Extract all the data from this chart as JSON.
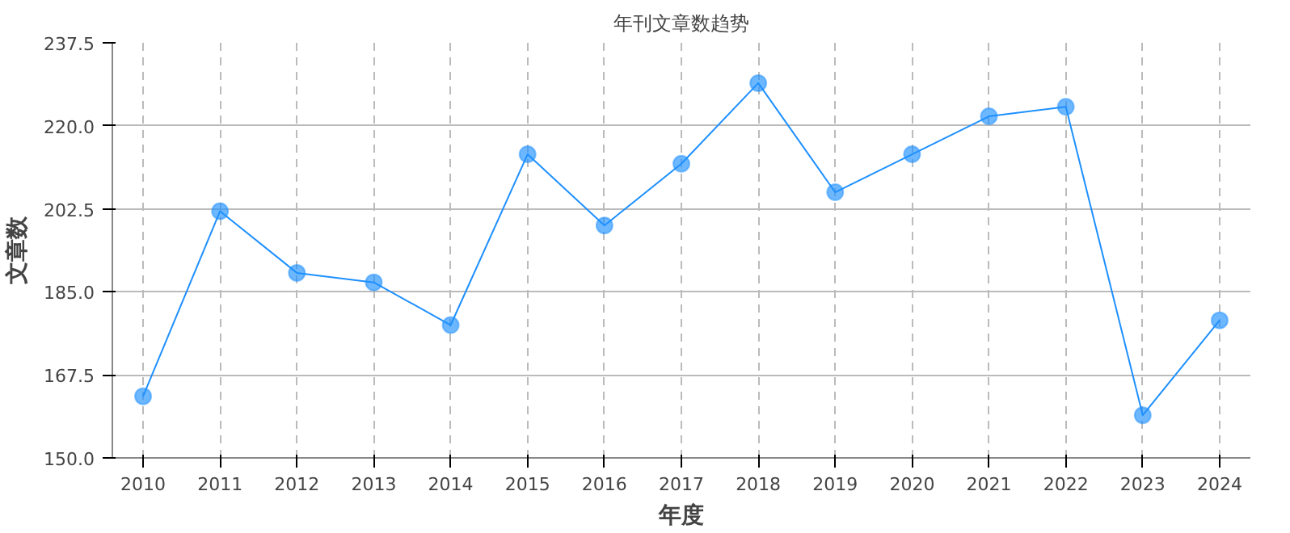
{
  "chart_data": {
    "type": "line",
    "title": "年刊文章数趋势",
    "xlabel": "年度",
    "ylabel": "文章数",
    "categories": [
      "2010",
      "2011",
      "2012",
      "2013",
      "2014",
      "2015",
      "2016",
      "2017",
      "2018",
      "2019",
      "2020",
      "2021",
      "2022",
      "2023",
      "2024"
    ],
    "series": [
      {
        "color": "#1e90ff",
        "values": [
          163,
          202,
          189,
          187,
          178,
          214,
          199,
          212,
          229,
          206,
          214,
          222,
          224,
          159,
          179
        ]
      }
    ],
    "ylim": [
      150,
      237.5
    ],
    "yticks": [
      {
        "value": 150,
        "label": "150.0"
      },
      {
        "value": 167.5,
        "label": "167.5"
      },
      {
        "value": 185,
        "label": "185.0"
      },
      {
        "value": 202.5,
        "label": "202.5"
      },
      {
        "value": 220,
        "label": "220.0"
      },
      {
        "value": 237.5,
        "label": "237.5"
      }
    ],
    "grid": true,
    "marker": "circle",
    "line_style": "solid"
  }
}
